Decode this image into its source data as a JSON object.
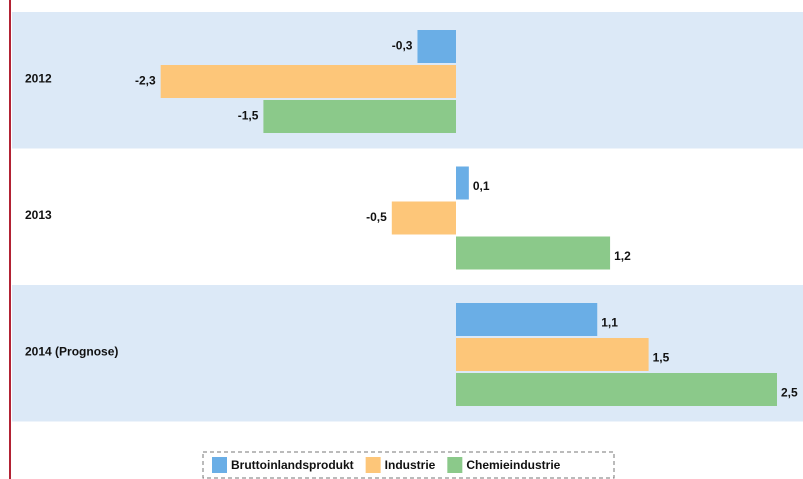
{
  "chart_data": {
    "type": "barh",
    "categories": [
      "2012",
      "2013",
      "2014 (Prognose)"
    ],
    "series": [
      {
        "name": "Bruttoinlandsprodukt",
        "color": "#6aaee6",
        "values": [
          -0.3,
          0.1,
          1.1
        ],
        "value_labels": [
          "-0,3",
          "0,1",
          "1,1"
        ]
      },
      {
        "name": "Industrie",
        "color": "#fdc679",
        "values": [
          -2.3,
          -0.5,
          1.5
        ],
        "value_labels": [
          "-2,3",
          "-0,5",
          "1,5"
        ]
      },
      {
        "name": "Chemieindustrie",
        "color": "#8bc98a",
        "values": [
          -1.5,
          1.2,
          2.5
        ],
        "value_labels": [
          "-1,5",
          "1,2",
          "2,5"
        ]
      }
    ]
  }
}
